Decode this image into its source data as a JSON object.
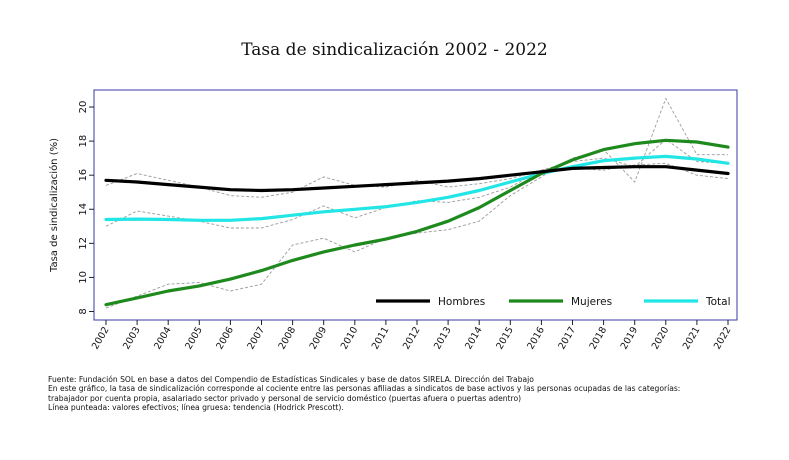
{
  "chart_data": {
    "type": "line",
    "title": "Tasa de sindicalización 2002 - 2022",
    "ylabel": "Tasa de sindicalización (%)",
    "xlabel": "",
    "x": [
      "2002",
      "2003",
      "2004",
      "2005",
      "2006",
      "2007",
      "2008",
      "2009",
      "2010",
      "2011",
      "2012",
      "2013",
      "2014",
      "2015",
      "2016",
      "2017",
      "2018",
      "2019",
      "2020",
      "2021",
      "2022"
    ],
    "ylim": [
      7.5,
      21
    ],
    "yticks": [
      8,
      10,
      12,
      14,
      16,
      18,
      20
    ],
    "grid": false,
    "legend_position": "bottom-right",
    "series": [
      {
        "name": "Hombres",
        "color": "#000000",
        "trend": [
          15.7,
          15.6,
          15.45,
          15.3,
          15.15,
          15.1,
          15.15,
          15.25,
          15.35,
          15.45,
          15.55,
          15.65,
          15.8,
          16.0,
          16.2,
          16.4,
          16.45,
          16.5,
          16.5,
          16.3,
          16.1
        ],
        "actual": [
          15.4,
          16.1,
          15.7,
          15.3,
          14.8,
          14.7,
          15.0,
          15.9,
          15.4,
          15.3,
          15.7,
          15.3,
          15.5,
          15.8,
          16.3,
          16.4,
          16.3,
          16.6,
          16.7,
          16.0,
          15.8
        ]
      },
      {
        "name": "Mujeres",
        "color": "#1e8a1e",
        "trend": [
          8.4,
          8.8,
          9.2,
          9.5,
          9.9,
          10.4,
          11.0,
          11.5,
          11.9,
          12.25,
          12.7,
          13.3,
          14.1,
          15.1,
          16.1,
          16.9,
          17.5,
          17.85,
          18.05,
          17.95,
          17.65
        ],
        "actual": [
          8.2,
          8.9,
          9.6,
          9.7,
          9.2,
          9.6,
          11.9,
          12.3,
          11.5,
          12.3,
          12.6,
          12.8,
          13.3,
          14.8,
          15.9,
          17.0,
          17.5,
          15.6,
          20.5,
          17.2,
          17.2
        ]
      },
      {
        "name": "Total",
        "color": "#22e5e5",
        "trend": [
          13.4,
          13.42,
          13.4,
          13.35,
          13.35,
          13.45,
          13.65,
          13.85,
          14.0,
          14.15,
          14.4,
          14.7,
          15.1,
          15.6,
          16.1,
          16.5,
          16.85,
          17.0,
          17.1,
          16.95,
          16.7
        ],
        "actual": [
          13.0,
          13.9,
          13.6,
          13.3,
          12.9,
          12.9,
          13.4,
          14.2,
          13.5,
          14.1,
          14.5,
          14.4,
          14.7,
          15.3,
          16.3,
          16.8,
          17.0,
          16.5,
          18.1,
          16.8,
          16.7
        ]
      }
    ]
  },
  "notes": {
    "line1": "Fuente: Fundación SOL en base a datos del Compendio de Estadísticas Sindicales y base de datos SIRELA. Dirección del Trabajo",
    "line2": "En este gráfico, la tasa de sindicalización corresponde al cociente entre las personas afiliadas a sindicatos de base activos y las personas ocupadas de las categorías:",
    "line3": "trabajador por cuenta propia, asalariado sector privado y personal de servicio doméstico (puertas afuera o puertas adentro)",
    "line4": "Línea punteada: valores efectivos; línea gruesa: tendencia (Hodrick Prescott)."
  }
}
